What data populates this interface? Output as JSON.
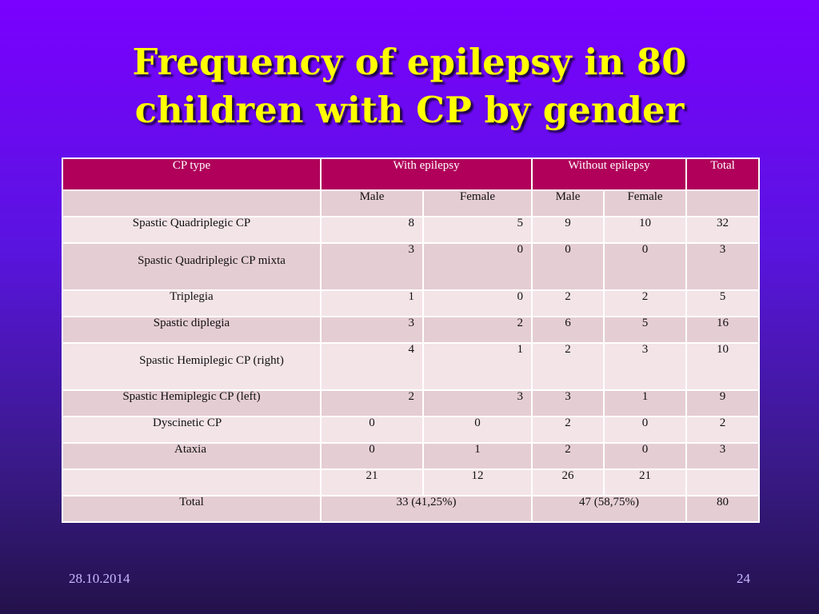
{
  "slide": {
    "title_line1": "Frequency of epilepsy in 80",
    "title_line2": "children with CP by gender",
    "footer_date": "28.10.2014",
    "footer_page": "24",
    "colors": {
      "background_top": "#7a00ff",
      "background_bottom": "#23124a",
      "title": "#ffff00",
      "header_row": "#b0005a",
      "row_light": "#f3e4e8",
      "row_dark": "#e5cdd4"
    }
  },
  "table": {
    "headers": [
      "CP type",
      "With epilepsy",
      "Without epilepsy",
      "Total"
    ],
    "subheaders": [
      "Male",
      "Female",
      "Male",
      "Female"
    ],
    "rows": [
      {
        "type": "Spastic Quadriplegic CP",
        "we_m": "8",
        "we_f": "5",
        "wo_m": "9",
        "wo_f": "10",
        "total": "32"
      },
      {
        "type": "Spastic Quadriplegic CP mixta",
        "we_m": "3",
        "we_f": "0",
        "wo_m": "0",
        "wo_f": "0",
        "total": "3"
      },
      {
        "type": "Triplegia",
        "we_m": "1",
        "we_f": "0",
        "wo_m": "2",
        "wo_f": "2",
        "total": "5"
      },
      {
        "type": "Spastic diplegia",
        "we_m": "3",
        "we_f": "2",
        "wo_m": "6",
        "wo_f": "5",
        "total": "16"
      },
      {
        "type": "Spastic Hemiplegic CP (right)",
        "we_m": "4",
        "we_f": "1",
        "wo_m": "2",
        "wo_f": "3",
        "total": "10"
      },
      {
        "type": "Spastic Hemiplegic CP (left)",
        "we_m": "2",
        "we_f": "3",
        "wo_m": "3",
        "wo_f": "1",
        "total": "9"
      },
      {
        "type": "Dyscinetic CP",
        "we_m": "0",
        "we_f": "0",
        "wo_m": "2",
        "wo_f": "0",
        "total": "2"
      },
      {
        "type": "Ataxia",
        "we_m": "0",
        "we_f": "1",
        "wo_m": "2",
        "wo_f": "0",
        "total": "3"
      }
    ],
    "subtotals": {
      "we_m": "21",
      "we_f": "12",
      "wo_m": "26",
      "wo_f": "21"
    },
    "total_row": {
      "label": "Total",
      "with_epilepsy": "33 (41,25%)",
      "without_epilepsy": "47 (58,75%)",
      "total": "80"
    }
  }
}
